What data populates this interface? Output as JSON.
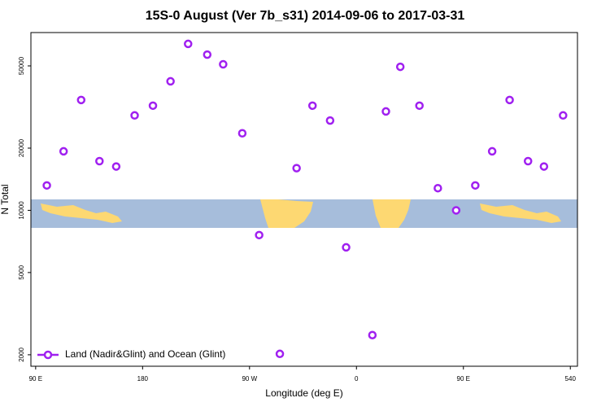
{
  "chart_data": {
    "type": "scatter",
    "title": "15S-0 August (Ver 7b_s31)   2014-09-06 to 2017-03-31",
    "xlabel": "Longitude (deg E)",
    "ylabel": "N Total",
    "xlim": [
      86,
      546
    ],
    "ylim": [
      1760,
      72500
    ],
    "ylog": true,
    "xticks": [
      {
        "value": 90,
        "label": "90 E"
      },
      180,
      {
        "value": 270,
        "label": "90 W"
      },
      {
        "value": 360,
        "label": "0"
      },
      {
        "value": 450,
        "label": "90 E"
      },
      540
    ],
    "yticks": [
      2000,
      5000,
      10000,
      20000,
      50000
    ],
    "legend": "lower left",
    "series": [
      {
        "name": "Land (Nadir&Glint) and Ocean (Glint)",
        "color": "#a020f0",
        "x": [
          99.4,
          113.5,
          128.3,
          143.7,
          157.8,
          173.3,
          188.7,
          203.5,
          218.3,
          234.4,
          247.8,
          263.9,
          278.1,
          295.5,
          309.6,
          323.0,
          337.8,
          351.3,
          373.4,
          384.8,
          396.9,
          413.0,
          428.5,
          443.9,
          460.0,
          474.2,
          488.9,
          504.4,
          517.8,
          533.9
        ],
        "values": [
          13200,
          19300,
          34200,
          17300,
          16300,
          28800,
          32100,
          42100,
          63900,
          56700,
          50900,
          23600,
          7590,
          2020,
          16000,
          32100,
          27200,
          6620,
          2490,
          30100,
          49500,
          32100,
          12800,
          10000,
          13200,
          19300,
          34200,
          17300,
          16300,
          28800
        ]
      }
    ]
  }
}
